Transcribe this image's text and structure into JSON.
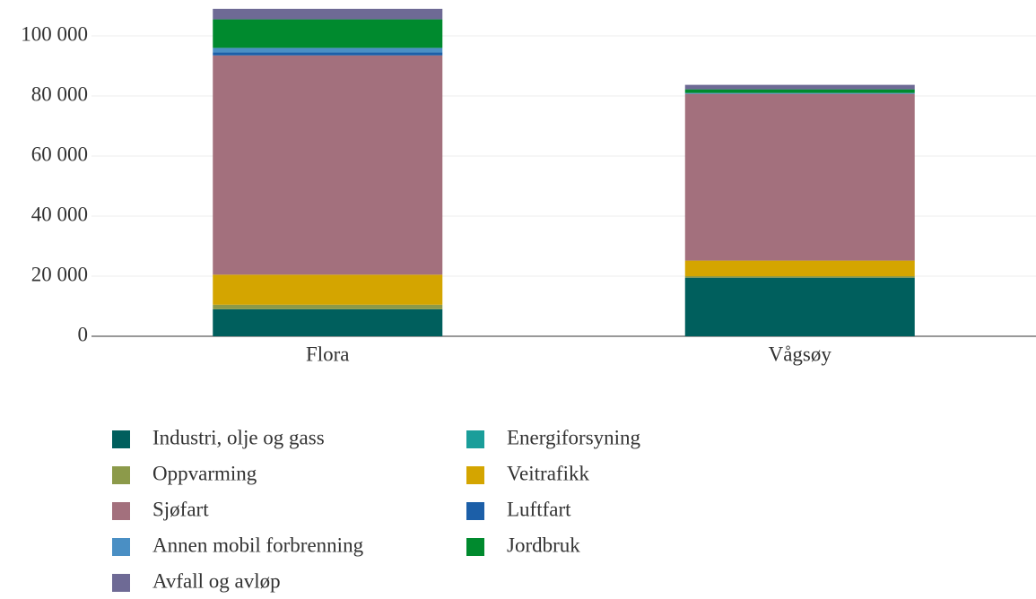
{
  "chart_data": {
    "type": "stacked_bar",
    "categories": [
      "Flora",
      "Vågsøy"
    ],
    "series": [
      {
        "name": "Industri, olje og gass",
        "color": "#005f5d",
        "values": [
          9000,
          19500
        ]
      },
      {
        "name": "Energiforsyning",
        "color": "#1a9e9a",
        "values": [
          0,
          0
        ]
      },
      {
        "name": "Oppvarming",
        "color": "#8c9a4a",
        "values": [
          1500,
          500
        ]
      },
      {
        "name": "Veitrafikk",
        "color": "#d4a500",
        "values": [
          10000,
          5200
        ]
      },
      {
        "name": "Sjøfart",
        "color": "#a3707d",
        "values": [
          73000,
          55500
        ]
      },
      {
        "name": "Luftfart",
        "color": "#1c5fa8",
        "values": [
          1000,
          0
        ]
      },
      {
        "name": "Annen mobil forbrenning",
        "color": "#4a8fc4",
        "values": [
          1500,
          300
        ]
      },
      {
        "name": "Jordbruk",
        "color": "#008a2e",
        "values": [
          9500,
          1200
        ]
      },
      {
        "name": "Avfall og avløp",
        "color": "#6e6a95",
        "values": [
          3500,
          1500
        ]
      }
    ],
    "ylim": [
      0,
      110000
    ],
    "yticks": [
      0,
      {
        "value": 20000,
        "label": "20 000"
      },
      {
        "value": 40000,
        "label": "40 000"
      },
      {
        "value": 60000,
        "label": "60 000"
      },
      {
        "value": 80000,
        "label": "80 000"
      },
      {
        "value": 100000,
        "label": "100 000"
      }
    ],
    "grid": true
  }
}
